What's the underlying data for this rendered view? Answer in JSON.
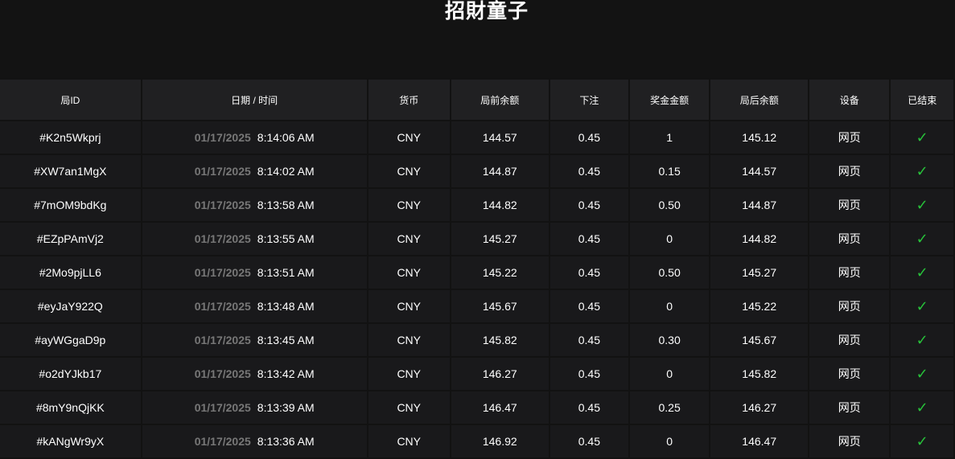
{
  "title": "招財童子",
  "columns": [
    "局ID",
    "日期 / 时间",
    "货币",
    "局前余额",
    "下注",
    "奖金金额",
    "局后余额",
    "设备",
    "已结束"
  ],
  "rows": [
    {
      "id": "#K2n5Wkprj",
      "date": "01/17/2025",
      "time": "8:14:06 AM",
      "currency": "CNY",
      "before": "144.57",
      "bet": "0.45",
      "win": "1",
      "after": "145.12",
      "device": "网页",
      "done": "✓"
    },
    {
      "id": "#XW7an1MgX",
      "date": "01/17/2025",
      "time": "8:14:02 AM",
      "currency": "CNY",
      "before": "144.87",
      "bet": "0.45",
      "win": "0.15",
      "after": "144.57",
      "device": "网页",
      "done": "✓"
    },
    {
      "id": "#7mOM9bdKg",
      "date": "01/17/2025",
      "time": "8:13:58 AM",
      "currency": "CNY",
      "before": "144.82",
      "bet": "0.45",
      "win": "0.50",
      "after": "144.87",
      "device": "网页",
      "done": "✓"
    },
    {
      "id": "#EZpPAmVj2",
      "date": "01/17/2025",
      "time": "8:13:55 AM",
      "currency": "CNY",
      "before": "145.27",
      "bet": "0.45",
      "win": "0",
      "after": "144.82",
      "device": "网页",
      "done": "✓"
    },
    {
      "id": "#2Mo9pjLL6",
      "date": "01/17/2025",
      "time": "8:13:51 AM",
      "currency": "CNY",
      "before": "145.22",
      "bet": "0.45",
      "win": "0.50",
      "after": "145.27",
      "device": "网页",
      "done": "✓"
    },
    {
      "id": "#eyJaY922Q",
      "date": "01/17/2025",
      "time": "8:13:48 AM",
      "currency": "CNY",
      "before": "145.67",
      "bet": "0.45",
      "win": "0",
      "after": "145.22",
      "device": "网页",
      "done": "✓"
    },
    {
      "id": "#ayWGgaD9p",
      "date": "01/17/2025",
      "time": "8:13:45 AM",
      "currency": "CNY",
      "before": "145.82",
      "bet": "0.45",
      "win": "0.30",
      "after": "145.67",
      "device": "网页",
      "done": "✓"
    },
    {
      "id": "#o2dYJkb17",
      "date": "01/17/2025",
      "time": "8:13:42 AM",
      "currency": "CNY",
      "before": "146.27",
      "bet": "0.45",
      "win": "0",
      "after": "145.82",
      "device": "网页",
      "done": "✓"
    },
    {
      "id": "#8mY9nQjKK",
      "date": "01/17/2025",
      "time": "8:13:39 AM",
      "currency": "CNY",
      "before": "146.47",
      "bet": "0.45",
      "win": "0.25",
      "after": "146.27",
      "device": "网页",
      "done": "✓"
    },
    {
      "id": "#kANgWr9yX",
      "date": "01/17/2025",
      "time": "8:13:36 AM",
      "currency": "CNY",
      "before": "146.92",
      "bet": "0.45",
      "win": "0",
      "after": "146.47",
      "device": "网页",
      "done": "✓"
    }
  ],
  "colors": {
    "check": "#27c23a",
    "date": "#777777"
  }
}
